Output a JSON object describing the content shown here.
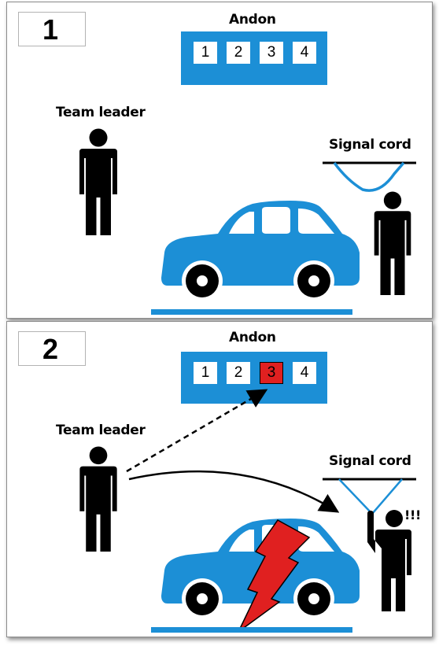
{
  "colors": {
    "andon_blue": "#1c8fd6",
    "alert_red": "#e02020",
    "figure_black": "#000000"
  },
  "icons": [
    "person-icon",
    "car-icon",
    "signal-cord-icon",
    "lightning-bolt-icon"
  ],
  "panels": [
    {
      "step": "1",
      "andon_title": "Andon",
      "andon_cells": [
        "1",
        "2",
        "3",
        "4"
      ],
      "highlighted_cell": null,
      "team_leader_label": "Team leader",
      "signal_cord_label": "Signal cord"
    },
    {
      "step": "2",
      "andon_title": "Andon",
      "andon_cells": [
        "1",
        "2",
        "3",
        "4"
      ],
      "highlighted_cell": "3",
      "team_leader_label": "Team leader",
      "signal_cord_label": "Signal cord",
      "exclamation": "!!!"
    }
  ]
}
